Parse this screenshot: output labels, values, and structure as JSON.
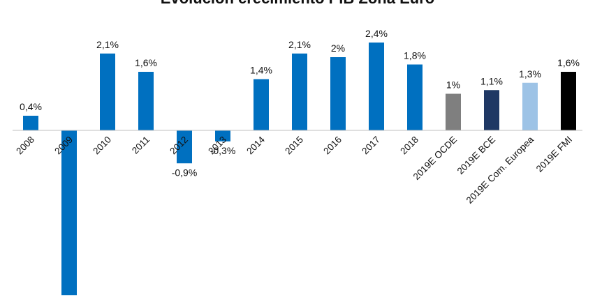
{
  "chart_data": {
    "type": "bar",
    "title": "Evolución crecimiento PIB Zona Euro",
    "xlabel": "",
    "ylabel": "",
    "grid": false,
    "legend": "none",
    "categories": [
      "2008",
      "2009",
      "2010",
      "2011",
      "2012",
      "2013",
      "2014",
      "2015",
      "2016",
      "2017",
      "2018",
      "2019E OCDE",
      "2019E BCE",
      "2019E Com. Europea",
      "2019E FMI"
    ],
    "values": [
      0.4,
      -4.5,
      2.1,
      1.6,
      -0.9,
      -0.3,
      1.4,
      2.1,
      2.0,
      2.4,
      1.8,
      1.0,
      1.1,
      1.3,
      1.6
    ],
    "data_labels": [
      "0,4%",
      "",
      "2,1%",
      "1,6%",
      "-0,9%",
      "-0,3%",
      "1,4%",
      "2,1%",
      "2%",
      "2,4%",
      "1,8%",
      "1%",
      "1,1%",
      "1,3%",
      "1,6%"
    ],
    "colors": [
      "#0070c0",
      "#0070c0",
      "#0070c0",
      "#0070c0",
      "#0070c0",
      "#0070c0",
      "#0070c0",
      "#0070c0",
      "#0070c0",
      "#0070c0",
      "#0070c0",
      "#7f7f7f",
      "#1f3864",
      "#9dc3e6",
      "#000000"
    ],
    "axis_color": "#bfbfbf"
  }
}
